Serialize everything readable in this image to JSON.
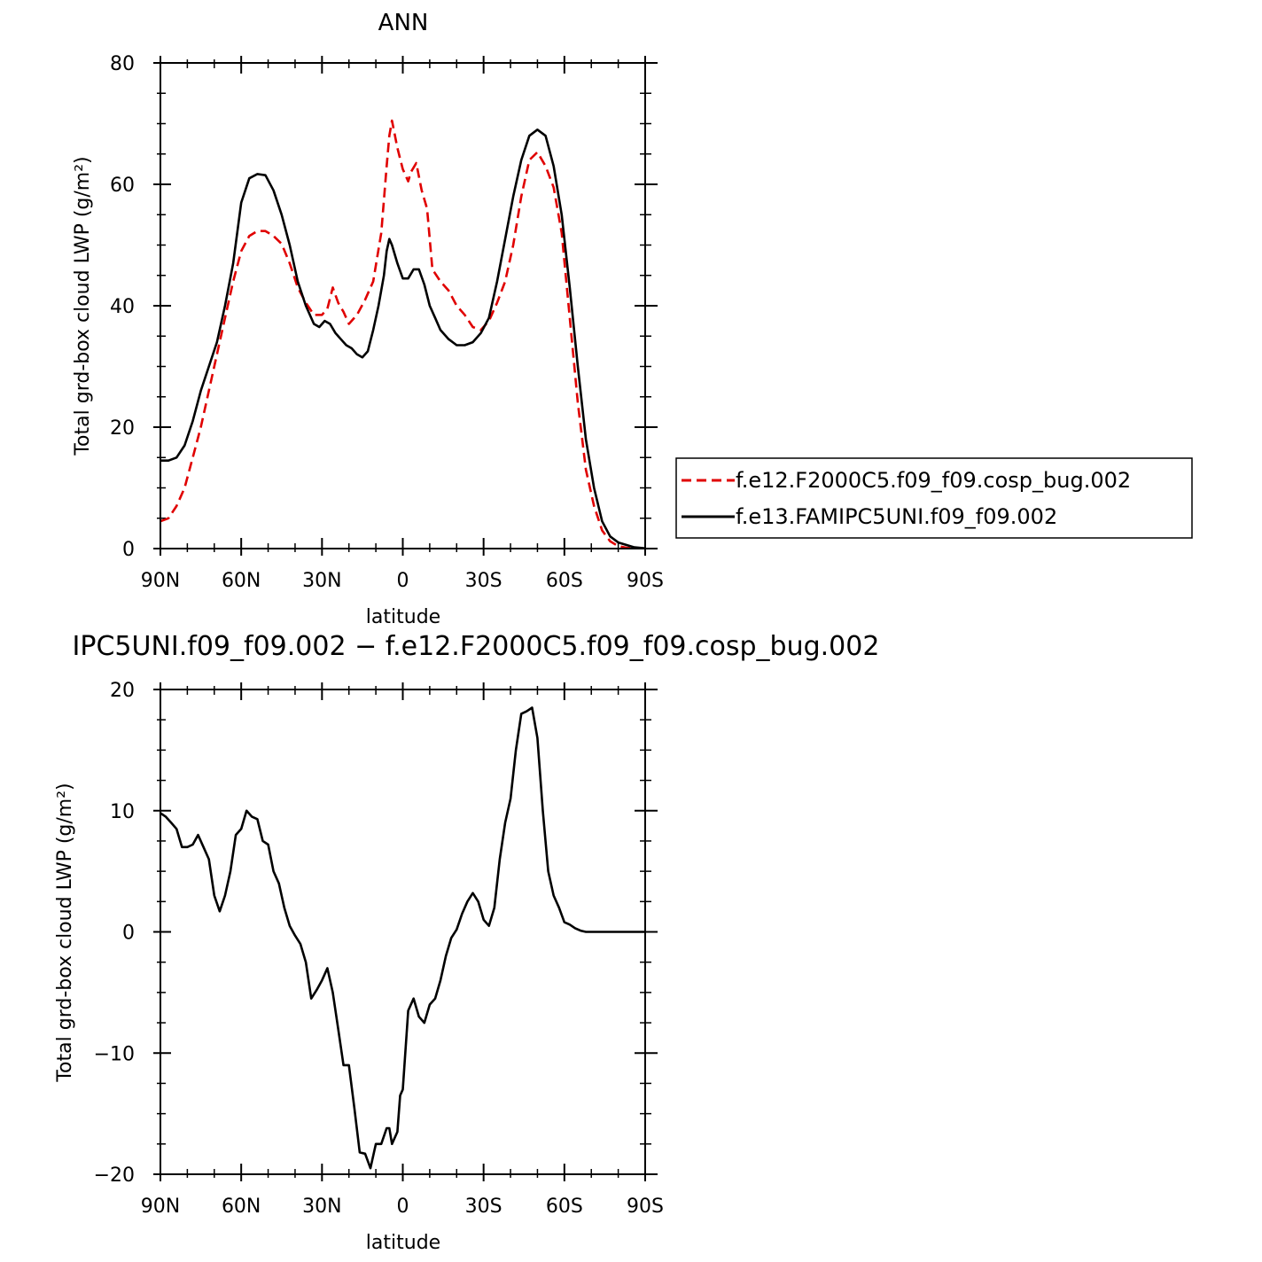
{
  "chart_data": [
    {
      "type": "line",
      "title": "ANN",
      "xlabel": "latitude",
      "ylabel": "Total grd-box cloud LWP (g/m²)",
      "xlim": [
        90,
        -90
      ],
      "ylim": [
        0,
        80
      ],
      "xticks": [
        {
          "value": 90,
          "label": "90N"
        },
        {
          "value": 60,
          "label": "60N"
        },
        {
          "value": 30,
          "label": "30N"
        },
        {
          "value": 0,
          "label": "0"
        },
        {
          "value": -30,
          "label": "30S"
        },
        {
          "value": -60,
          "label": "60S"
        },
        {
          "value": -90,
          "label": "90S"
        }
      ],
      "yticks": [
        0,
        20,
        40,
        60,
        80
      ],
      "legend_position": "right",
      "series": [
        {
          "name": "f.e12.F2000C5.f09_f09.cosp_bug.002",
          "color": "#e00000",
          "dash": "dashed",
          "x": [
            90,
            87,
            84,
            81,
            78,
            75,
            72,
            69,
            66,
            63,
            60,
            57,
            54,
            51,
            48,
            45,
            42,
            39,
            36,
            33,
            30,
            28,
            26,
            24,
            22,
            20,
            17,
            14,
            11,
            8,
            6,
            5,
            4,
            2,
            0,
            -2,
            -3,
            -5,
            -7,
            -9,
            -11,
            -14,
            -17,
            -20,
            -23,
            -26,
            -29,
            -32,
            -35,
            -38,
            -41,
            -44,
            -47,
            -50,
            -53,
            -56,
            -59,
            -62,
            -65,
            -68,
            -71,
            -74,
            -77,
            -80,
            -83,
            -86,
            -90
          ],
          "y": [
            4.5,
            5,
            7,
            10,
            15,
            20,
            26,
            32,
            38,
            44,
            49,
            51.5,
            52.3,
            52.3,
            51.5,
            50.2,
            47,
            43,
            40.5,
            38.5,
            38.5,
            39.5,
            43,
            40.5,
            39,
            37,
            38.5,
            41,
            44,
            52,
            63,
            68,
            70.5,
            66,
            62.5,
            60.5,
            62,
            63.5,
            59,
            56,
            46,
            44,
            42.5,
            40,
            38.5,
            36.5,
            36,
            37.5,
            40.5,
            44,
            50,
            58,
            64,
            65.3,
            63,
            59.5,
            52,
            38,
            24,
            13,
            7,
            3,
            1.2,
            0.4,
            0.15,
            0.05,
            0.02
          ]
        },
        {
          "name": "f.e13.FAMIPC5UNI.f09_f09.002",
          "color": "#000000",
          "dash": "solid",
          "x": [
            90,
            87,
            84,
            81,
            78,
            75,
            72,
            69,
            66,
            63,
            60,
            57,
            54,
            51,
            48,
            45,
            42,
            39,
            36,
            33,
            31,
            29,
            27,
            25,
            23,
            21,
            19,
            17,
            15,
            13,
            11,
            9,
            7,
            6,
            5,
            4,
            2,
            0,
            -2,
            -4,
            -6,
            -8,
            -10,
            -12,
            -14,
            -17,
            -20,
            -23,
            -26,
            -29,
            -32,
            -35,
            -38,
            -41,
            -44,
            -47,
            -50,
            -53,
            -56,
            -59,
            -62,
            -65,
            -68,
            -71,
            -74,
            -77,
            -80,
            -83,
            -86,
            -90
          ],
          "y": [
            14.5,
            14.5,
            15,
            17,
            21,
            26,
            30,
            34,
            40,
            47,
            57,
            61,
            61.7,
            61.5,
            59,
            55,
            50,
            44,
            40,
            37,
            36.5,
            37.5,
            37,
            35.5,
            34.5,
            33.5,
            33,
            32,
            31.5,
            32.5,
            36,
            40,
            45,
            49,
            51,
            50,
            47,
            44.5,
            44.5,
            46,
            46,
            43.5,
            40,
            38,
            36,
            34.5,
            33.5,
            33.5,
            34,
            35.5,
            38,
            44,
            51,
            58,
            64,
            68,
            69,
            68,
            63,
            55,
            43,
            30,
            18,
            10,
            4.5,
            2,
            1,
            0.6,
            0.2,
            0.05
          ]
        }
      ]
    },
    {
      "type": "line",
      "title": "IPC5UNI.f09_f09.002 − f.e12.F2000C5.f09_f09.cosp_bug.002",
      "xlabel": "latitude",
      "ylabel": "Total grd-box cloud LWP (g/m²)",
      "xlim": [
        90,
        -90
      ],
      "ylim": [
        -20,
        20
      ],
      "xticks": [
        {
          "value": 90,
          "label": "90N"
        },
        {
          "value": 60,
          "label": "60N"
        },
        {
          "value": 30,
          "label": "30N"
        },
        {
          "value": 0,
          "label": "0"
        },
        {
          "value": -30,
          "label": "30S"
        },
        {
          "value": -60,
          "label": "60S"
        },
        {
          "value": -90,
          "label": "90S"
        }
      ],
      "yticks": [
        -20,
        -10,
        0,
        10,
        20
      ],
      "series": [
        {
          "color": "#000000",
          "dash": "solid",
          "x": [
            90,
            88,
            86,
            84,
            82,
            80,
            78,
            76,
            74,
            72,
            70,
            68,
            66,
            64,
            62,
            60,
            58,
            56,
            54,
            52,
            50,
            48,
            46,
            44,
            42,
            40,
            38,
            36,
            34,
            32,
            30,
            28,
            26,
            24,
            22,
            20,
            18,
            16,
            14,
            12,
            10,
            8,
            6,
            5,
            4,
            2,
            1,
            0,
            -2,
            -4,
            -6,
            -8,
            -10,
            -12,
            -14,
            -16,
            -18,
            -20,
            -22,
            -24,
            -26,
            -28,
            -30,
            -32,
            -34,
            -36,
            -38,
            -40,
            -42,
            -44,
            -46,
            -48,
            -50,
            -52,
            -54,
            -56,
            -58,
            -60,
            -62,
            -64,
            -66,
            -68,
            -70,
            -72,
            -74,
            -76,
            -78,
            -80,
            -82,
            -84,
            -86,
            -90
          ],
          "y": [
            9.8,
            9.5,
            9,
            8.5,
            7,
            7,
            7.2,
            8,
            7,
            6,
            3,
            1.7,
            3,
            5,
            8,
            8.5,
            10,
            9.5,
            9.3,
            7.5,
            7.2,
            5,
            4,
            2,
            0.5,
            -0.3,
            -1,
            -2.5,
            -5.5,
            -4.8,
            -4,
            -3,
            -5,
            -8,
            -11,
            -11,
            -14.5,
            -18.2,
            -18.3,
            -19.5,
            -17.5,
            -17.5,
            -16.2,
            -16.2,
            -17.5,
            -16.5,
            -13.5,
            -13,
            -6.5,
            -5.5,
            -7,
            -7.5,
            -6,
            -5.5,
            -4,
            -2,
            -0.5,
            0.2,
            1.5,
            2.5,
            3.2,
            2.5,
            1,
            0.5,
            2,
            6,
            9,
            11,
            15,
            18,
            18.2,
            18.5,
            16,
            10,
            5,
            3,
            2,
            0.8,
            0.6,
            0.3,
            0.1,
            0,
            0,
            0,
            0,
            0,
            0,
            0,
            0,
            0,
            0,
            0
          ]
        }
      ]
    }
  ]
}
